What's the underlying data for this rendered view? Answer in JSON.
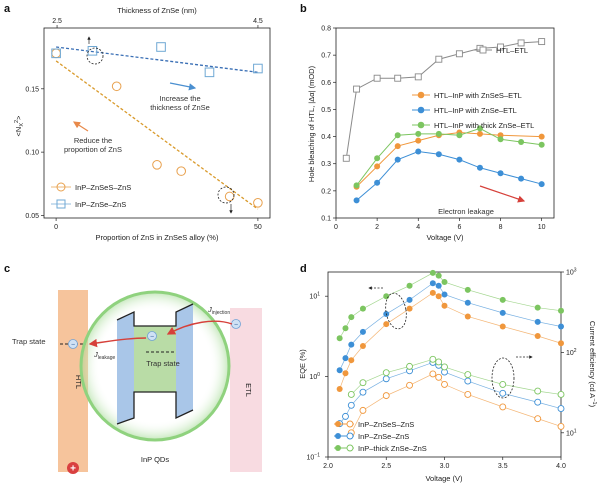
{
  "panels": {
    "a": "a",
    "b": "b",
    "c": "c",
    "d": "d"
  },
  "chart_data": [
    {
      "panel": "a",
      "type": "scatter",
      "xlabel": "Proportion of ZnS in ZnSeS alloy (%)",
      "ylabel": "<N",
      "ylabel_sub": "X",
      "ylabel_sup": "2",
      "top_xlabel": "Thickness of ZnSe (nm)",
      "xlim": [
        -3,
        53
      ],
      "ylim": [
        0.048,
        0.198
      ],
      "x_ticks": [
        0,
        50
      ],
      "y_ticks": [
        0.05,
        0.1,
        0.15
      ],
      "y_tick_labels": [
        "0.05",
        "0.10",
        "0.15"
      ],
      "top_x_ticks": [
        2.5,
        4.5
      ],
      "top_xlim": [
        2.37,
        4.62
      ],
      "series": [
        {
          "name": "InP–ZnSeS–ZnS",
          "color": "#e8a14e",
          "marker": "circle",
          "x": [
            0,
            15,
            25,
            31,
            43,
            50
          ],
          "y": [
            0.178,
            0.152,
            0.09,
            0.085,
            0.065,
            0.06
          ]
        },
        {
          "name": "InP–ZnSe–ZnS",
          "color": "#6fa8d4",
          "marker": "square",
          "x": [
            0,
            9,
            26,
            38,
            50
          ],
          "y": [
            0.178,
            0.18,
            0.183,
            0.163,
            0.166
          ]
        }
      ],
      "fit_lines": [
        {
          "color": "#d99a2b",
          "x": [
            0,
            50
          ],
          "y": [
            0.172,
            0.055
          ]
        },
        {
          "color": "#3a6fb5",
          "x": [
            0,
            50
          ],
          "y": [
            0.183,
            0.163
          ]
        }
      ],
      "annotations": {
        "reduce_line1": "Reduce the",
        "reduce_line2": "proportion of ZnS",
        "increase_line1": "Increase the",
        "increase_line2": "thickness of ZnSe"
      }
    },
    {
      "panel": "b",
      "type": "line",
      "xlabel": "Voltage (V)",
      "ylabel": "Hole bleaching of HTL, |Δα| (mOD)",
      "xlim": [
        0,
        10.6
      ],
      "ylim": [
        0.1,
        0.8
      ],
      "x_ticks": [
        0,
        2,
        4,
        6,
        8,
        10
      ],
      "y_ticks": [
        0.1,
        0.2,
        0.3,
        0.4,
        0.5,
        0.6,
        0.7,
        0.8
      ],
      "y_tick_labels": [
        "0.1",
        "0.2",
        "0.3",
        "0.4",
        "0.5",
        "0.6",
        "0.7",
        "0.8"
      ],
      "series": [
        {
          "name": "HTL–ETL",
          "color": "#8a8a8a",
          "marker": "open-square",
          "x": [
            0.5,
            1,
            2,
            3,
            4,
            5,
            6,
            7,
            8,
            9,
            10
          ],
          "y": [
            0.32,
            0.575,
            0.615,
            0.615,
            0.62,
            0.685,
            0.705,
            0.725,
            0.73,
            0.745,
            0.75
          ]
        },
        {
          "name": "HTL–InP with ZnSeS–ETL",
          "color": "#f0973c",
          "marker": "circle",
          "x": [
            1,
            2,
            3,
            4,
            5,
            6,
            7,
            8,
            10
          ],
          "y": [
            0.215,
            0.29,
            0.365,
            0.385,
            0.405,
            0.415,
            0.41,
            0.405,
            0.4
          ]
        },
        {
          "name": "HTL–InP with ZnSe–ETL",
          "color": "#3d8fd6",
          "marker": "circle",
          "x": [
            1,
            2,
            3,
            4,
            5,
            6,
            7,
            8,
            9,
            10
          ],
          "y": [
            0.165,
            0.23,
            0.315,
            0.345,
            0.335,
            0.315,
            0.285,
            0.265,
            0.245,
            0.225
          ]
        },
        {
          "name": "HTL–InP with thick ZnSe–ETL",
          "color": "#7cc560",
          "marker": "circle",
          "x": [
            1,
            2,
            3,
            4,
            5,
            6,
            7,
            8,
            9,
            10
          ],
          "y": [
            0.22,
            0.32,
            0.405,
            0.41,
            0.41,
            0.405,
            0.43,
            0.39,
            0.38,
            0.37
          ]
        }
      ],
      "annotations": {
        "electron_leakage": "Electron leakage"
      }
    },
    {
      "panel": "d",
      "type": "scatter",
      "xlabel": "Voltage (V)",
      "ylabel": "EQE (%)",
      "ylabel_right": "Current efficiency (cd A",
      "ylabel_right_sup": "−1",
      "ylabel_right_close": ")",
      "xlim": [
        2.0,
        4.0
      ],
      "x_ticks": [
        2.0,
        2.5,
        3.0,
        3.5,
        4.0
      ],
      "x_tick_labels": [
        "2.0",
        "2.5",
        "3.0",
        "3.5",
        "4.0"
      ],
      "y_scale": "log",
      "ylim": [
        0.1,
        20
      ],
      "y_ticks": [
        0.1,
        1,
        10
      ],
      "y_tick_base": [
        "10",
        "10",
        "10"
      ],
      "y_tick_exp": [
        "−1",
        "0",
        "1"
      ],
      "y2_scale": "log",
      "y2lim": [
        5,
        1000
      ],
      "y2_ticks": [
        10,
        100,
        1000
      ],
      "y2_tick_base": [
        "10",
        "10",
        "10"
      ],
      "y2_tick_exp": [
        "1",
        "2",
        "3"
      ],
      "series": [
        {
          "name": "InP–ZnSeS–ZnS",
          "color": "#f0973c",
          "kind": "EQE",
          "marker": "filled",
          "x": [
            2.1,
            2.15,
            2.2,
            2.3,
            2.5,
            2.7,
            2.9,
            2.95,
            3.0,
            3.2,
            3.5,
            3.8,
            4.0
          ],
          "y": [
            0.7,
            1.1,
            1.6,
            2.4,
            4.5,
            7.0,
            11.0,
            10.0,
            7.6,
            5.6,
            4.2,
            3.2,
            2.6
          ]
        },
        {
          "name": "InP–ZnSe–ZnS",
          "color": "#3d8fd6",
          "kind": "EQE",
          "marker": "filled",
          "x": [
            2.1,
            2.15,
            2.2,
            2.3,
            2.5,
            2.7,
            2.9,
            2.95,
            3.0,
            3.2,
            3.5,
            3.8,
            4.0
          ],
          "y": [
            1.2,
            1.7,
            2.5,
            3.6,
            6.0,
            9.0,
            14.5,
            13.5,
            10.5,
            8.3,
            6.2,
            4.8,
            4.2
          ]
        },
        {
          "name": "InP–thick ZnSe–ZnS",
          "color": "#7cc560",
          "kind": "EQE",
          "marker": "filled",
          "x": [
            2.1,
            2.15,
            2.2,
            2.3,
            2.5,
            2.7,
            2.9,
            2.95,
            3.0,
            3.2,
            3.5,
            3.8,
            4.0
          ],
          "y": [
            3.0,
            4.0,
            5.5,
            7.0,
            10.0,
            13.5,
            19.5,
            18.0,
            15.0,
            12.0,
            9.0,
            7.2,
            6.6
          ]
        },
        {
          "name": "InP–ZnSeS–ZnS",
          "color": "#f0973c",
          "kind": "CE",
          "marker": "open",
          "x": [
            2.2,
            2.3,
            2.5,
            2.7,
            2.9,
            2.95,
            3.0,
            3.2,
            3.5,
            3.8,
            4.0
          ],
          "y": [
            10,
            19,
            29,
            39,
            54,
            49,
            40,
            30,
            21,
            15,
            12
          ]
        },
        {
          "name": "InP–ZnSe–ZnS",
          "color": "#3d8fd6",
          "kind": "CE",
          "marker": "open",
          "x": [
            2.1,
            2.15,
            2.2,
            2.3,
            2.5,
            2.7,
            2.9,
            2.95,
            3.0,
            3.2,
            3.5,
            3.8,
            4.0
          ],
          "y": [
            13,
            16,
            22,
            32,
            47,
            59,
            75,
            69,
            57,
            44,
            31,
            24,
            20
          ]
        },
        {
          "name": "InP–thick ZnSe–ZnS",
          "color": "#7cc560",
          "kind": "CE",
          "marker": "open",
          "x": [
            2.2,
            2.3,
            2.5,
            2.7,
            2.9,
            2.95,
            3.0,
            3.2,
            3.5,
            3.8,
            4.0
          ],
          "y": [
            30,
            42,
            56,
            67,
            82,
            76,
            66,
            53,
            40,
            33,
            30
          ]
        }
      ]
    }
  ],
  "diagram_c": {
    "htl": "HTL",
    "etl": "ETL",
    "trap_state_left": "Trap state",
    "trap_state_center": "Trap state",
    "j_injection": "J",
    "j_injection_sub": "injection",
    "j_leakage": "J",
    "j_leakage_sub": "leakage",
    "qd_label": "InP QDs",
    "electron_symbol": "−",
    "hole_symbol": "+"
  }
}
